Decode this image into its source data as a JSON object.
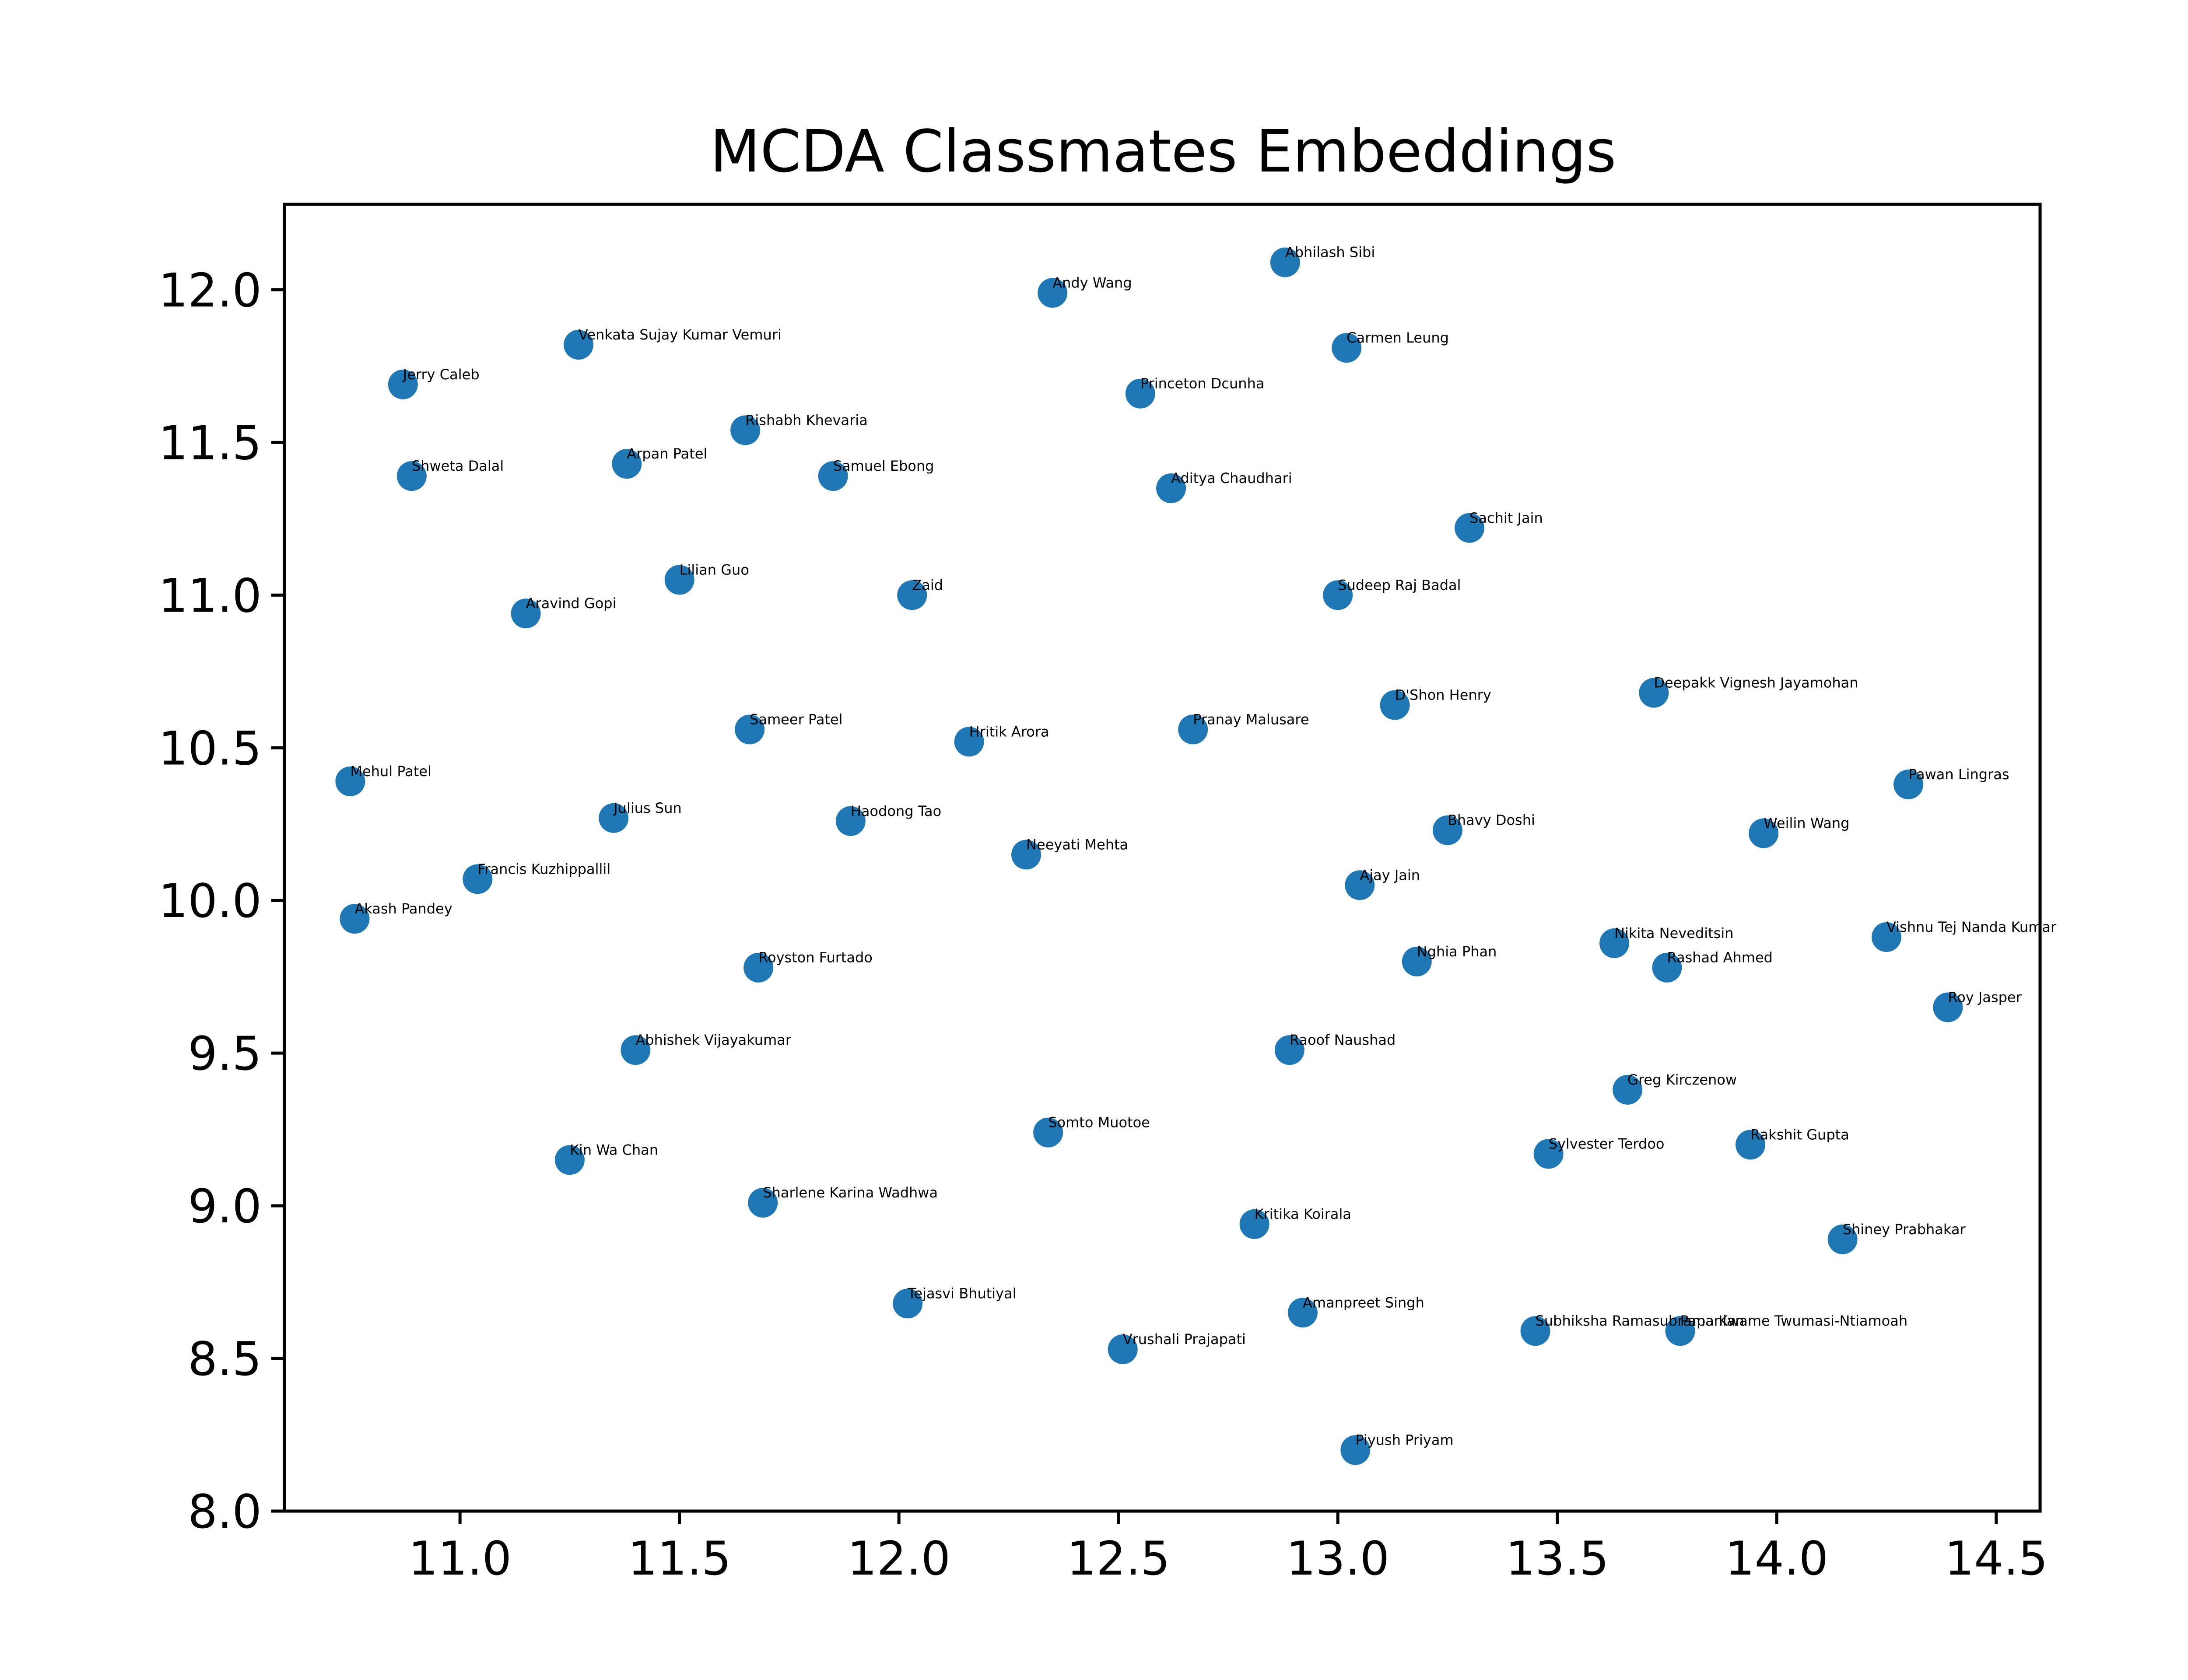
{
  "chart_data": {
    "type": "scatter",
    "title": "MCDA Classmates Embeddings",
    "xlabel": "",
    "ylabel": "",
    "xlim": [
      10.6,
      14.6
    ],
    "ylim": [
      8.0,
      12.28
    ],
    "x_ticks": [
      "11.0",
      "11.5",
      "12.0",
      "12.5",
      "13.0",
      "13.5",
      "14.0",
      "14.5"
    ],
    "y_ticks": [
      "8.0",
      "8.5",
      "9.0",
      "9.5",
      "10.0",
      "10.5",
      "11.0",
      "11.5",
      "12.0"
    ],
    "grid": false,
    "point_color": "#1f77b4",
    "points": [
      {
        "label": "Abhilash Sibi",
        "x": 12.88,
        "y": 12.09
      },
      {
        "label": "Andy Wang",
        "x": 12.35,
        "y": 11.99
      },
      {
        "label": "Venkata Sujay Kumar Vemuri",
        "x": 11.27,
        "y": 11.82
      },
      {
        "label": "Carmen Leung",
        "x": 13.02,
        "y": 11.81
      },
      {
        "label": "Jerry Caleb",
        "x": 10.87,
        "y": 11.69
      },
      {
        "label": "Princeton Dcunha",
        "x": 12.55,
        "y": 11.66
      },
      {
        "label": "Rishabh Khevaria",
        "x": 11.65,
        "y": 11.54
      },
      {
        "label": "Arpan Patel",
        "x": 11.38,
        "y": 11.43
      },
      {
        "label": "Shweta Dalal",
        "x": 10.89,
        "y": 11.39
      },
      {
        "label": "Samuel Ebong",
        "x": 11.85,
        "y": 11.39
      },
      {
        "label": "Aditya Chaudhari",
        "x": 12.62,
        "y": 11.35
      },
      {
        "label": "Sachit Jain",
        "x": 13.3,
        "y": 11.22
      },
      {
        "label": "Lilian Guo",
        "x": 11.5,
        "y": 11.05
      },
      {
        "label": "Zaid",
        "x": 12.03,
        "y": 11.0
      },
      {
        "label": "Sudeep Raj Badal",
        "x": 13.0,
        "y": 11.0
      },
      {
        "label": "Aravind Gopi",
        "x": 11.15,
        "y": 10.94
      },
      {
        "label": "Deepakk Vignesh Jayamohan",
        "x": 13.72,
        "y": 10.68
      },
      {
        "label": "D'Shon Henry",
        "x": 13.13,
        "y": 10.64
      },
      {
        "label": "Sameer Patel",
        "x": 11.66,
        "y": 10.56
      },
      {
        "label": "Pranay Malusare",
        "x": 12.67,
        "y": 10.56
      },
      {
        "label": "Hritik Arora",
        "x": 12.16,
        "y": 10.52
      },
      {
        "label": "Mehul Patel",
        "x": 10.75,
        "y": 10.39
      },
      {
        "label": "Pawan Lingras",
        "x": 14.3,
        "y": 10.38
      },
      {
        "label": "Julius Sun",
        "x": 11.35,
        "y": 10.27
      },
      {
        "label": "Haodong Tao",
        "x": 11.89,
        "y": 10.26
      },
      {
        "label": "Bhavy Doshi",
        "x": 13.25,
        "y": 10.23
      },
      {
        "label": "Weilin Wang",
        "x": 13.97,
        "y": 10.22
      },
      {
        "label": "Neeyati Mehta",
        "x": 12.29,
        "y": 10.15
      },
      {
        "label": "Francis Kuzhippallil",
        "x": 11.04,
        "y": 10.07
      },
      {
        "label": "Ajay Jain",
        "x": 13.05,
        "y": 10.05
      },
      {
        "label": "Akash Pandey",
        "x": 10.76,
        "y": 9.94
      },
      {
        "label": "Vishnu Tej Nanda Kumar",
        "x": 14.25,
        "y": 9.88
      },
      {
        "label": "Nikita Neveditsin",
        "x": 13.63,
        "y": 9.86
      },
      {
        "label": "Nghia Phan",
        "x": 13.18,
        "y": 9.8
      },
      {
        "label": "Royston Furtado",
        "x": 11.68,
        "y": 9.78
      },
      {
        "label": "Rashad Ahmed",
        "x": 13.75,
        "y": 9.78
      },
      {
        "label": "Roy Jasper",
        "x": 14.39,
        "y": 9.65
      },
      {
        "label": "Abhishek Vijayakumar",
        "x": 11.4,
        "y": 9.51
      },
      {
        "label": "Raoof Naushad",
        "x": 12.89,
        "y": 9.51
      },
      {
        "label": "Greg Kirczenow",
        "x": 13.66,
        "y": 9.38
      },
      {
        "label": "Somto Muotoe",
        "x": 12.34,
        "y": 9.24
      },
      {
        "label": "Rakshit Gupta",
        "x": 13.94,
        "y": 9.2
      },
      {
        "label": "Sylvester Terdoo",
        "x": 13.48,
        "y": 9.17
      },
      {
        "label": "Kin Wa Chan",
        "x": 11.25,
        "y": 9.15
      },
      {
        "label": "Sharlene Karina Wadhwa",
        "x": 11.69,
        "y": 9.01
      },
      {
        "label": "Kritika Koirala",
        "x": 12.81,
        "y": 8.94
      },
      {
        "label": "Shiney Prabhakar",
        "x": 14.15,
        "y": 8.89
      },
      {
        "label": "Tejasvi Bhutiyal",
        "x": 12.02,
        "y": 8.68
      },
      {
        "label": "Amanpreet Singh",
        "x": 12.92,
        "y": 8.65
      },
      {
        "label": "Subhiksha Ramasubramanian",
        "x": 13.45,
        "y": 8.59
      },
      {
        "label": "Papa Kwame Twumasi-Ntiamoah",
        "x": 13.78,
        "y": 8.59
      },
      {
        "label": "Vrushali Prajapati",
        "x": 12.51,
        "y": 8.53
      },
      {
        "label": "Piyush Priyam",
        "x": 13.04,
        "y": 8.2
      }
    ]
  }
}
